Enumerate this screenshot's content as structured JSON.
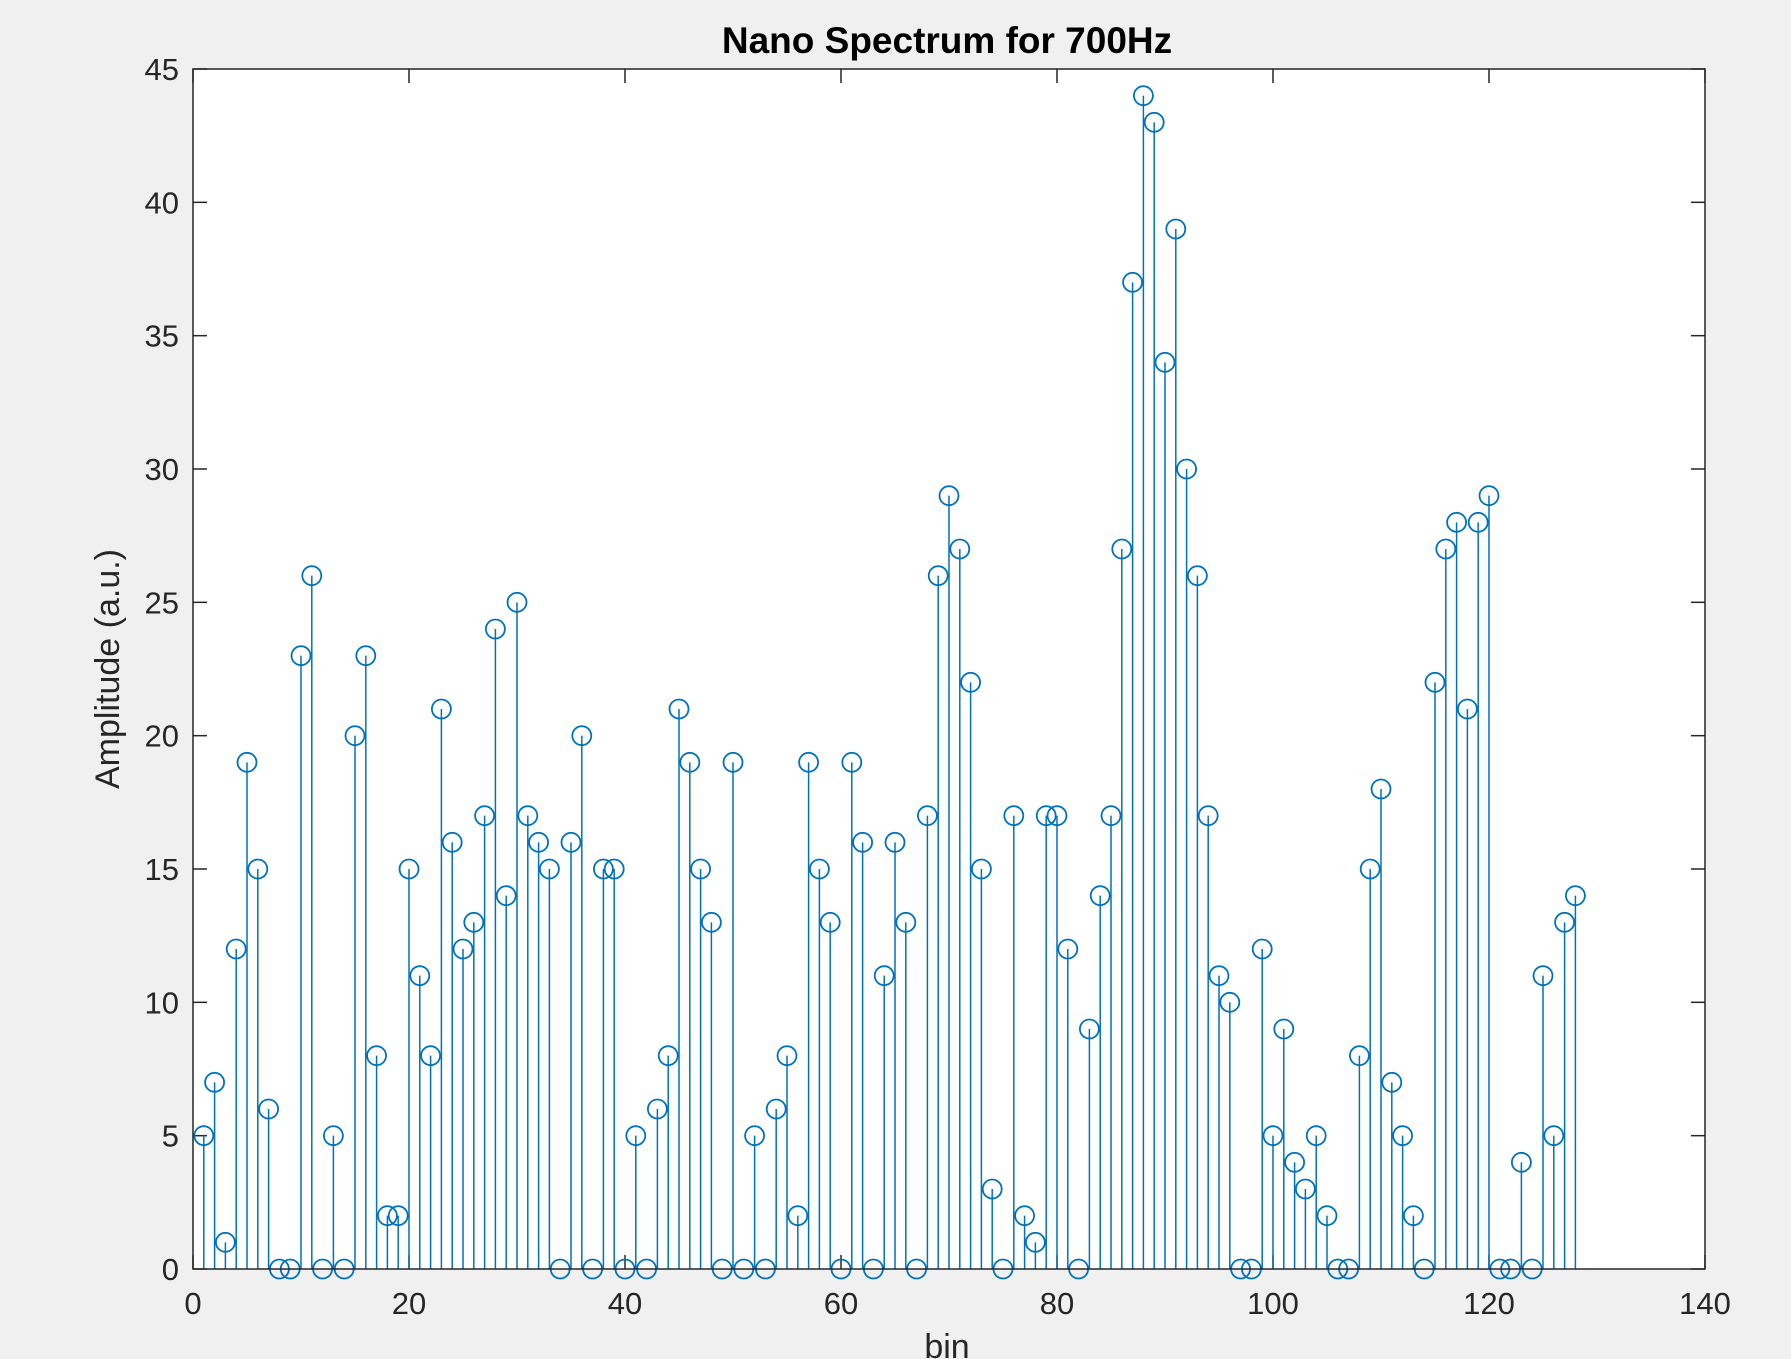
{
  "chart_data": {
    "type": "stem",
    "title": "Nano Spectrum for 700Hz",
    "xlabel": "bin",
    "ylabel": "Amplitude (a.u.)",
    "xlim": [
      0,
      140
    ],
    "ylim": [
      0,
      45
    ],
    "xticks": [
      0,
      20,
      40,
      60,
      80,
      100,
      120,
      140
    ],
    "yticks": [
      0,
      5,
      10,
      15,
      20,
      25,
      30,
      35,
      40,
      45
    ],
    "grid": false,
    "marker": "circle",
    "color": "#0072bd",
    "x": [
      1,
      2,
      3,
      4,
      5,
      6,
      7,
      8,
      9,
      10,
      11,
      12,
      13,
      14,
      15,
      16,
      17,
      18,
      19,
      20,
      21,
      22,
      23,
      24,
      25,
      26,
      27,
      28,
      29,
      30,
      31,
      32,
      33,
      34,
      35,
      36,
      37,
      38,
      39,
      40,
      41,
      42,
      43,
      44,
      45,
      46,
      47,
      48,
      49,
      50,
      51,
      52,
      53,
      54,
      55,
      56,
      57,
      58,
      59,
      60,
      61,
      62,
      63,
      64,
      65,
      66,
      67,
      68,
      69,
      70,
      71,
      72,
      73,
      74,
      75,
      76,
      77,
      78,
      79,
      80,
      81,
      82,
      83,
      84,
      85,
      86,
      87,
      88,
      89,
      90,
      91,
      92,
      93,
      94,
      95,
      96,
      97,
      98,
      99,
      100,
      101,
      102,
      103,
      104,
      105,
      106,
      107,
      108,
      109,
      110,
      111,
      112,
      113,
      114,
      115,
      116,
      117,
      118,
      119,
      120,
      121,
      122,
      123,
      124,
      125,
      126,
      127,
      128
    ],
    "values": [
      5,
      7,
      1,
      12,
      19,
      15,
      6,
      0,
      0,
      23,
      26,
      0,
      5,
      0,
      20,
      23,
      8,
      2,
      2,
      15,
      11,
      8,
      21,
      16,
      12,
      13,
      17,
      24,
      14,
      25,
      17,
      16,
      15,
      0,
      16,
      20,
      0,
      15,
      15,
      0,
      5,
      0,
      6,
      8,
      21,
      19,
      15,
      13,
      0,
      19,
      0,
      5,
      0,
      6,
      8,
      2,
      19,
      15,
      13,
      0,
      19,
      16,
      0,
      11,
      16,
      13,
      0,
      17,
      26,
      29,
      27,
      22,
      15,
      3,
      0,
      17,
      2,
      1,
      17,
      17,
      12,
      0,
      9,
      14,
      17,
      27,
      37,
      44,
      43,
      34,
      39,
      30,
      26,
      17,
      11,
      10,
      0,
      0,
      12,
      5,
      9,
      4,
      3,
      5,
      2,
      0,
      0,
      8,
      15,
      18,
      7,
      5,
      2,
      0,
      22,
      27,
      28,
      21,
      28,
      29,
      0,
      0,
      4,
      0,
      11,
      5,
      13,
      14
    ]
  }
}
